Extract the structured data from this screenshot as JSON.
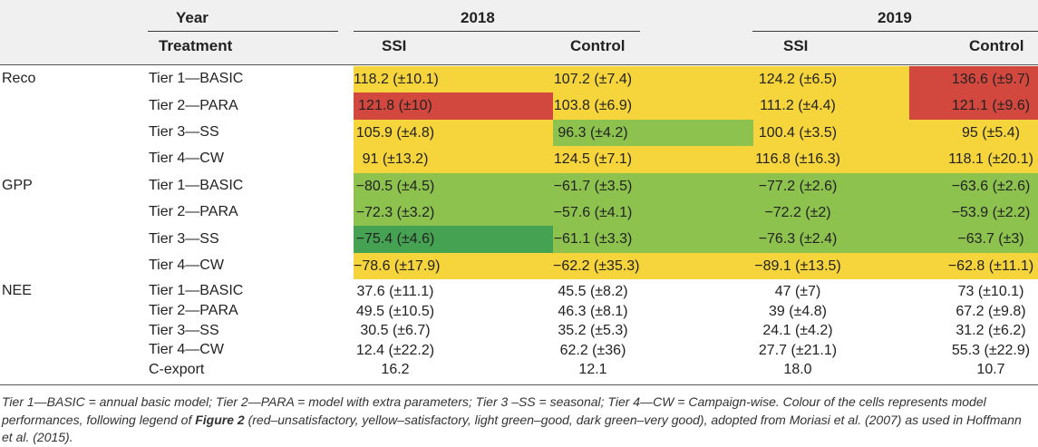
{
  "colors": {
    "red": "#d2483e",
    "yellow": "#f5d43c",
    "light_green": "#8dc24f",
    "dark_green": "#46a253",
    "none": "transparent"
  },
  "headers": {
    "year": "Year",
    "treatment": "Treatment",
    "y2018": "2018",
    "y2019": "2019",
    "col1": "SSI",
    "col2": "Control",
    "col3": "SSI",
    "col4": "Control"
  },
  "groups": [
    "Reco",
    "GPP",
    "NEE"
  ],
  "rows": [
    {
      "group": "Reco",
      "label": "Tier 1—BASIC",
      "cells": [
        {
          "v": "118.2 (±10.1)",
          "c": "yellow"
        },
        {
          "v": "107.2 (±7.4)",
          "c": "yellow"
        },
        {
          "v": "124.2 (±6.5)",
          "c": "yellow"
        },
        {
          "v": "136.6 (±9.7)",
          "c": "red"
        }
      ]
    },
    {
      "group": "",
      "label": "Tier 2—PARA",
      "cells": [
        {
          "v": "121.8 (±10)",
          "c": "red"
        },
        {
          "v": "103.8 (±6.9)",
          "c": "yellow"
        },
        {
          "v": "111.2 (±4.4)",
          "c": "yellow"
        },
        {
          "v": "121.1 (±9.6)",
          "c": "red"
        }
      ]
    },
    {
      "group": "",
      "label": "Tier 3—SS",
      "cells": [
        {
          "v": "105.9 (±4.8)",
          "c": "yellow"
        },
        {
          "v": "96.3 (±4.2)",
          "c": "light_green"
        },
        {
          "v": "100.4 (±3.5)",
          "c": "yellow"
        },
        {
          "v": "95 (±5.4)",
          "c": "yellow"
        }
      ]
    },
    {
      "group": "",
      "label": "Tier 4—CW",
      "cells": [
        {
          "v": "91 (±13.2)",
          "c": "yellow"
        },
        {
          "v": "124.5 (±7.1)",
          "c": "yellow"
        },
        {
          "v": "116.8 (±16.3)",
          "c": "yellow"
        },
        {
          "v": "118.1 (±20.1)",
          "c": "yellow"
        }
      ]
    },
    {
      "group": "GPP",
      "label": "Tier 1—BASIC",
      "cells": [
        {
          "v": "−80.5 (±4.5)",
          "c": "light_green"
        },
        {
          "v": "−61.7 (±3.5)",
          "c": "light_green"
        },
        {
          "v": "−77.2 (±2.6)",
          "c": "light_green"
        },
        {
          "v": "−63.6 (±2.6)",
          "c": "light_green"
        }
      ]
    },
    {
      "group": "",
      "label": "Tier 2—PARA",
      "cells": [
        {
          "v": "−72.3 (±3.2)",
          "c": "light_green"
        },
        {
          "v": "−57.6 (±4.1)",
          "c": "light_green"
        },
        {
          "v": "−72.2 (±2)",
          "c": "light_green"
        },
        {
          "v": "−53.9 (±2.2)",
          "c": "light_green"
        }
      ]
    },
    {
      "group": "",
      "label": "Tier 3—SS",
      "cells": [
        {
          "v": "−75.4 (±4.6)",
          "c": "dark_green"
        },
        {
          "v": "−61.1 (±3.3)",
          "c": "light_green"
        },
        {
          "v": "−76.3 (±2.4)",
          "c": "light_green"
        },
        {
          "v": "−63.7 (±3)",
          "c": "light_green"
        }
      ]
    },
    {
      "group": "",
      "label": "Tier 4—CW",
      "cells": [
        {
          "v": "−78.6 (±17.9)",
          "c": "yellow"
        },
        {
          "v": "−62.2 (±35.3)",
          "c": "yellow"
        },
        {
          "v": "−89.1 (±13.5)",
          "c": "yellow"
        },
        {
          "v": "−62.8 (±11.1)",
          "c": "yellow"
        }
      ]
    },
    {
      "group": "NEE",
      "label": "Tier 1—BASIC",
      "cells": [
        {
          "v": "37.6 (±11.1)",
          "c": "none"
        },
        {
          "v": "45.5 (±8.2)",
          "c": "none"
        },
        {
          "v": "47 (±7)",
          "c": "none"
        },
        {
          "v": "73 (±10.1)",
          "c": "none"
        }
      ]
    },
    {
      "group": "",
      "label": "Tier 2—PARA",
      "cells": [
        {
          "v": "49.5 (±10.5)",
          "c": "none"
        },
        {
          "v": "46.3 (±8.1)",
          "c": "none"
        },
        {
          "v": "39 (±4.8)",
          "c": "none"
        },
        {
          "v": "67.2 (±9.8)",
          "c": "none"
        }
      ]
    },
    {
      "group": "",
      "label": "Tier 3—SS",
      "cells": [
        {
          "v": "30.5 (±6.7)",
          "c": "none"
        },
        {
          "v": "35.2 (±5.3)",
          "c": "none"
        },
        {
          "v": "24.1 (±4.2)",
          "c": "none"
        },
        {
          "v": "31.2 (±6.2)",
          "c": "none"
        }
      ]
    },
    {
      "group": "",
      "label": "Tier 4—CW",
      "cells": [
        {
          "v": "12.4 (±22.2)",
          "c": "none"
        },
        {
          "v": "62.2 (±36)",
          "c": "none"
        },
        {
          "v": "27.7 (±21.1)",
          "c": "none"
        },
        {
          "v": "55.3 (±22.9)",
          "c": "none"
        }
      ]
    },
    {
      "group": "",
      "label": "C-export",
      "cells": [
        {
          "v": "16.2",
          "c": "none"
        },
        {
          "v": "12.1",
          "c": "none"
        },
        {
          "v": "18.0",
          "c": "none"
        },
        {
          "v": "10.7",
          "c": "none"
        }
      ]
    }
  ],
  "footnote": {
    "before": "Tier 1—BASIC = annual basic model; Tier 2—PARA = model with extra parameters; Tier 3 –SS = seasonal; Tier 4—CW = Campaign-wise. Colour of the cells represents model performances, following legend of ",
    "figure_ref": "Figure 2",
    "after": " (red–unsatisfactory, yellow–satisfactory, light green–good, dark green–very good), adopted from Moriasi et al. (2007) as used in Hoffmann et al. (2015)."
  }
}
